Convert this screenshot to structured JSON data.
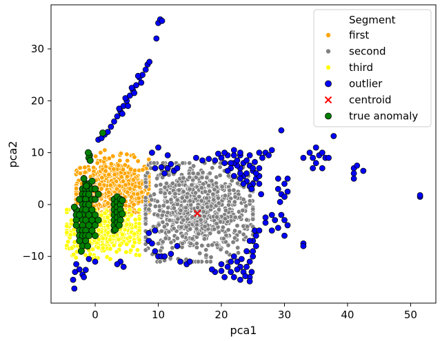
{
  "chart_data": {
    "type": "scatter",
    "xlabel": "pca1",
    "ylabel": "pca2",
    "xlim": [
      -7,
      54
    ],
    "ylim": [
      -19,
      38.5
    ],
    "xticks": [
      0,
      10,
      20,
      30,
      40,
      50
    ],
    "yticks": [
      -10,
      0,
      10,
      20,
      30
    ],
    "grid": false,
    "legend": {
      "title": "Segment",
      "placement": "top-right",
      "entries": [
        {
          "label": "first",
          "color": "#ffa500",
          "marker": "circle"
        },
        {
          "label": "second",
          "color": "#808080",
          "marker": "circle"
        },
        {
          "label": "third",
          "color": "#ffff00",
          "marker": "circle"
        },
        {
          "label": "outlier",
          "color": "#0000ff",
          "marker": "circle-edged"
        },
        {
          "label": "centroid",
          "color": "#ff0000",
          "marker": "x"
        },
        {
          "label": "true anomaly",
          "color": "#008000",
          "marker": "circle-edged"
        }
      ]
    },
    "clusters": [
      {
        "series": "first",
        "color": "#ffa500",
        "center": [
          3,
          3
        ],
        "spread": [
          3.4,
          2.8
        ],
        "count": 650,
        "xrange": [
          -3,
          8.5
        ],
        "yrange": [
          -1.5,
          10.5
        ]
      },
      {
        "series": "second",
        "color": "#808080",
        "center": [
          16,
          -1
        ],
        "spread": [
          4.5,
          4.5
        ],
        "count": 800,
        "xrange": [
          8,
          25
        ],
        "yrange": [
          -11,
          8
        ]
      },
      {
        "series": "third",
        "color": "#ffff00",
        "center": [
          1.5,
          -5
        ],
        "spread": [
          3,
          2.2
        ],
        "count": 500,
        "xrange": [
          -4.5,
          7
        ],
        "yrange": [
          -10.5,
          -1
        ]
      }
    ],
    "series": [
      {
        "name": "outlier",
        "color": "#0000ff",
        "points": [
          [
            -3.2,
            -13
          ],
          [
            -3.5,
            -14.5
          ],
          [
            -3.3,
            -16.2
          ],
          [
            -2.5,
            -12.5
          ],
          [
            -2,
            -13.5
          ],
          [
            -1.5,
            -12.6
          ],
          [
            -1.8,
            -14
          ],
          [
            -1,
            -10.5
          ],
          [
            0,
            -11
          ],
          [
            -3,
            -11.5
          ],
          [
            0.5,
            12.5
          ],
          [
            1,
            12.8
          ],
          [
            1.5,
            13.5
          ],
          [
            2,
            14
          ],
          [
            2.5,
            15
          ],
          [
            3,
            16
          ],
          [
            3.5,
            17
          ],
          [
            4,
            18
          ],
          [
            4.5,
            19
          ],
          [
            5,
            20
          ],
          [
            5.5,
            21
          ],
          [
            6,
            22
          ],
          [
            6.5,
            23
          ],
          [
            7,
            24.5
          ],
          [
            7.5,
            25
          ],
          [
            8,
            26
          ],
          [
            8.3,
            27
          ],
          [
            8.6,
            27.5
          ],
          [
            6.8,
            24.8
          ],
          [
            5.8,
            22.5
          ],
          [
            4.8,
            20.5
          ],
          [
            3.8,
            18.5
          ],
          [
            7.3,
            23.5
          ],
          [
            6.2,
            21.5
          ],
          [
            4.3,
            17.5
          ],
          [
            5.2,
            19
          ],
          [
            9.7,
            32
          ],
          [
            10,
            35
          ],
          [
            10.3,
            35.7
          ],
          [
            10.6,
            35.4
          ],
          [
            9.5,
            7
          ],
          [
            10.5,
            7.2
          ],
          [
            11.5,
            7
          ],
          [
            12.5,
            6.5
          ],
          [
            13,
            7
          ],
          [
            12,
            7.8
          ],
          [
            9,
            10
          ],
          [
            10,
            11
          ],
          [
            11,
            6
          ],
          [
            11.5,
            9.5
          ],
          [
            8.5,
            -7
          ],
          [
            9,
            -7.5
          ],
          [
            9.5,
            -9
          ],
          [
            10,
            -10
          ],
          [
            10.5,
            -10
          ],
          [
            11,
            -10
          ],
          [
            12,
            -9.5
          ],
          [
            13,
            -8
          ],
          [
            13.5,
            -11
          ],
          [
            14.5,
            -11.5
          ],
          [
            15,
            -11
          ],
          [
            4,
            -11
          ],
          [
            3.5,
            -11.5
          ],
          [
            4.5,
            -12
          ],
          [
            8.5,
            -5.5
          ],
          [
            9.5,
            -5
          ],
          [
            22,
            -10
          ],
          [
            22.5,
            -11
          ],
          [
            23,
            -12
          ],
          [
            23.5,
            -13
          ],
          [
            24,
            -12
          ],
          [
            24.5,
            -11
          ],
          [
            25,
            -10
          ],
          [
            25.5,
            -8
          ],
          [
            25.5,
            -6
          ],
          [
            25.3,
            -5
          ],
          [
            25,
            -7
          ],
          [
            25,
            -9
          ],
          [
            24.5,
            -14
          ],
          [
            24.8,
            -13
          ],
          [
            20,
            -11.5
          ],
          [
            21,
            -12
          ],
          [
            21.5,
            -13
          ],
          [
            20.5,
            -14
          ],
          [
            19,
            -13
          ],
          [
            18.5,
            -12.5
          ],
          [
            22,
            -14
          ],
          [
            23,
            -14.5
          ],
          [
            24.5,
            -14.8
          ],
          [
            21.5,
            -11
          ],
          [
            23.2,
            -10.5
          ],
          [
            24,
            -9
          ],
          [
            24.5,
            -7
          ],
          [
            20,
            -12.8
          ],
          [
            22.5,
            -12.5
          ],
          [
            23.8,
            -13.8
          ],
          [
            23,
            7
          ],
          [
            23.5,
            8
          ],
          [
            24,
            8.5
          ],
          [
            24.5,
            7.5
          ],
          [
            25,
            6.5
          ],
          [
            25.5,
            5
          ],
          [
            25,
            4
          ],
          [
            24.5,
            3.5
          ],
          [
            24,
            4.5
          ],
          [
            23.5,
            5.5
          ],
          [
            23,
            6
          ],
          [
            22.5,
            7.5
          ],
          [
            22,
            8
          ],
          [
            21.5,
            7
          ],
          [
            21,
            6.5
          ],
          [
            22,
            5.5
          ],
          [
            24,
            6
          ],
          [
            25,
            7
          ],
          [
            26,
            5.5
          ],
          [
            26,
            4
          ],
          [
            22.5,
            8.5
          ],
          [
            23.5,
            4
          ],
          [
            24.8,
            3
          ],
          [
            25.5,
            6
          ],
          [
            23,
            5
          ],
          [
            26,
            7
          ],
          [
            21.5,
            8
          ],
          [
            20,
            9
          ],
          [
            19,
            8.5
          ],
          [
            18,
            8.8
          ],
          [
            17,
            8.5
          ],
          [
            16,
            9
          ],
          [
            21,
            9.5
          ],
          [
            19.5,
            9.8
          ],
          [
            20.5,
            8
          ],
          [
            22,
            9.5
          ],
          [
            23,
            9.5
          ],
          [
            24.5,
            9.5
          ],
          [
            25.3,
            8.2
          ],
          [
            26,
            10
          ],
          [
            27,
            10
          ],
          [
            28,
            10.5
          ],
          [
            26.5,
            9
          ],
          [
            27.5,
            9.5
          ],
          [
            23,
            10
          ],
          [
            22,
            10.5
          ],
          [
            20.5,
            10
          ],
          [
            26.3,
            2
          ],
          [
            29,
            3
          ],
          [
            29.5,
            2
          ],
          [
            30,
            1.5
          ],
          [
            30.5,
            2.5
          ],
          [
            29.3,
            0.5
          ],
          [
            30,
            4
          ],
          [
            29,
            5
          ],
          [
            30.5,
            5
          ],
          [
            28,
            -2
          ],
          [
            28.5,
            -3
          ],
          [
            27,
            -3.5
          ],
          [
            29.5,
            -2
          ],
          [
            30,
            -3
          ],
          [
            30.5,
            -4
          ],
          [
            29,
            -4.5
          ],
          [
            28,
            -5
          ],
          [
            26,
            -5
          ],
          [
            27,
            -2.5
          ],
          [
            30,
            -6
          ],
          [
            33,
            -7.5
          ],
          [
            33,
            -8
          ],
          [
            29.5,
            14.3
          ],
          [
            33,
            9
          ],
          [
            34,
            10
          ],
          [
            34.5,
            9
          ],
          [
            35,
            8
          ],
          [
            35.5,
            9.5
          ],
          [
            36,
            10
          ],
          [
            36.5,
            9
          ],
          [
            35,
            11
          ],
          [
            34.5,
            7
          ],
          [
            36,
            7
          ],
          [
            37,
            9
          ],
          [
            37.8,
            13.2
          ],
          [
            41,
            7
          ],
          [
            41,
            6
          ],
          [
            41,
            5
          ],
          [
            41.5,
            7.5
          ],
          [
            42.5,
            6.5
          ],
          [
            51.5,
            1.5
          ],
          [
            51.5,
            1.8
          ]
        ]
      },
      {
        "name": "centroid",
        "color": "#ff0000",
        "points": [
          [
            16.2,
            -1.7
          ]
        ]
      },
      {
        "name": "true anomaly",
        "color": "#008000",
        "points": [
          [
            -3,
            -1
          ],
          [
            -3,
            -2
          ],
          [
            -3,
            -3
          ],
          [
            -3,
            -4
          ],
          [
            -2.5,
            -5
          ],
          [
            -2.5,
            -6
          ],
          [
            -2.5,
            -7
          ],
          [
            -2,
            -8
          ],
          [
            -2,
            3
          ],
          [
            -2,
            2
          ],
          [
            -2,
            1
          ],
          [
            -2,
            0
          ],
          [
            -2,
            -1
          ],
          [
            -2,
            -2
          ],
          [
            -2,
            -3
          ],
          [
            -2,
            -4
          ],
          [
            -2,
            -5
          ],
          [
            -2,
            -6
          ],
          [
            -1.5,
            4
          ],
          [
            -1.5,
            3
          ],
          [
            -1.5,
            2
          ],
          [
            -1.5,
            1
          ],
          [
            -1.5,
            0
          ],
          [
            -1.5,
            -1
          ],
          [
            -1.5,
            -3
          ],
          [
            -1.5,
            -5
          ],
          [
            -1.5,
            -6
          ],
          [
            -1.5,
            -7
          ],
          [
            -1,
            4
          ],
          [
            -1,
            3
          ],
          [
            -1,
            2
          ],
          [
            -1,
            0
          ],
          [
            -1,
            -2
          ],
          [
            -1,
            -4
          ],
          [
            -1,
            -6
          ],
          [
            -0.5,
            4.5
          ],
          [
            -0.5,
            3
          ],
          [
            -0.5,
            1
          ],
          [
            -0.5,
            -1
          ],
          [
            -0.5,
            -3
          ],
          [
            -0.5,
            -5
          ],
          [
            0,
            3
          ],
          [
            0,
            1
          ],
          [
            0,
            -2
          ],
          [
            0,
            -4
          ],
          [
            0,
            -6
          ],
          [
            0.5,
            2
          ],
          [
            0.5,
            -3
          ],
          [
            -2.5,
            1
          ],
          [
            -2.5,
            -2
          ],
          [
            -3.3,
            -0.5
          ],
          [
            -1.2,
            -8
          ],
          [
            -1.8,
            5
          ],
          [
            -2.2,
            -9
          ],
          [
            -0.9,
            9.5
          ],
          [
            -1,
            9
          ],
          [
            -1.1,
            10
          ],
          [
            -0.8,
            8.5
          ],
          [
            1.2,
            13.8
          ],
          [
            -1.4,
            3.6
          ],
          [
            3,
            1
          ],
          [
            3,
            0
          ],
          [
            3,
            -1
          ],
          [
            3,
            -2
          ],
          [
            3,
            -3
          ],
          [
            3,
            -4
          ],
          [
            3,
            -5
          ],
          [
            3.5,
            1.5
          ],
          [
            3.5,
            0.5
          ],
          [
            3.5,
            -0.5
          ],
          [
            3.5,
            -1.5
          ],
          [
            3.5,
            -2.5
          ],
          [
            3.5,
            -3.5
          ],
          [
            4,
            1
          ],
          [
            4,
            0
          ],
          [
            4,
            -1
          ],
          [
            4,
            -2
          ],
          [
            4,
            -3
          ],
          [
            4.3,
            0.8
          ],
          [
            4.3,
            -1.8
          ],
          [
            3.2,
            -4.8
          ],
          [
            3.8,
            -4
          ]
        ]
      }
    ]
  }
}
